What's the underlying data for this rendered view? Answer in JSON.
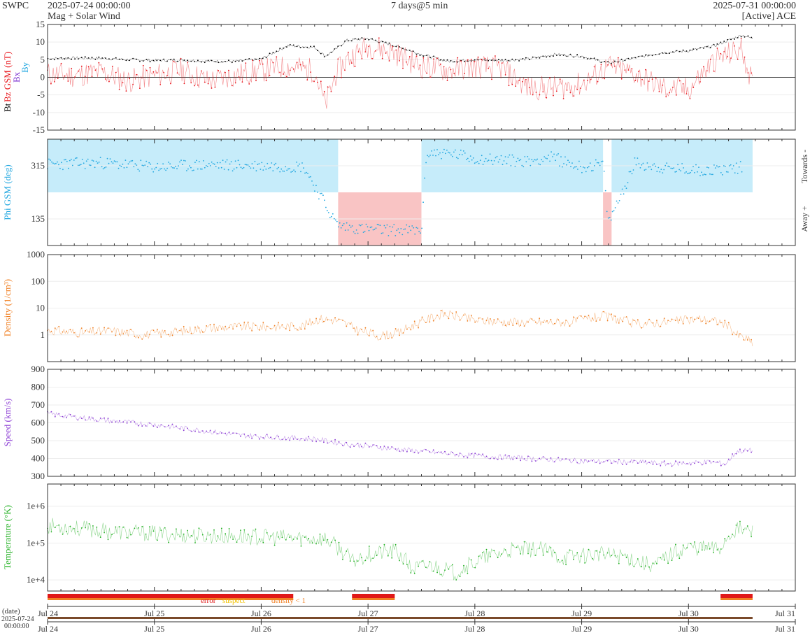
{
  "header": {
    "source": "SWPC",
    "start": "2025-07-24 00:00:00",
    "subtitle": "Mag + Solar Wind",
    "span": "7 days@5 min",
    "end": "2025-07-31 00:00:00",
    "spacecraft": "[Active] ACE"
  },
  "colors": {
    "bt": "#000000",
    "bz": "#e8151b",
    "bx": "#7b2fd0",
    "by": "#22a7e0",
    "phi": "#22a7e0",
    "towards_fill": "#c6ecfa",
    "away_fill": "#f9c4c4",
    "density": "#f07f22",
    "speed": "#8b3cd4",
    "temperature": "#22b022",
    "error": "#e01818",
    "suspect": "#f2c200",
    "density_lt1": "#f07f22"
  },
  "chart_data": [
    {
      "type": "line",
      "id": "mag",
      "ylabel_parts": [
        "Bt",
        "Bz GSM (nT)"
      ],
      "legend": [
        "Bx",
        "By"
      ],
      "ylim": [
        -15,
        15
      ],
      "yticks": [
        15,
        10,
        5,
        0,
        -5,
        -10,
        -15
      ],
      "x_days": [
        0,
        0.25,
        0.5,
        0.75,
        1,
        1.25,
        1.5,
        1.75,
        2,
        2.25,
        2.5,
        2.6,
        2.7,
        2.8,
        3,
        3.25,
        3.5,
        3.75,
        4,
        4.25,
        4.5,
        4.75,
        5,
        5.25,
        5.5,
        5.75,
        6,
        6.25,
        6.5,
        6.6
      ],
      "series": [
        {
          "name": "Bt",
          "values": [
            5.3,
            5.5,
            5.4,
            5.0,
            4.8,
            4.9,
            4.6,
            4.5,
            5.2,
            9.0,
            8.5,
            6.0,
            8.0,
            10.5,
            11.0,
            9.0,
            6.5,
            4.5,
            5.0,
            4.8,
            5.2,
            6.5,
            6.0,
            4.0,
            5.5,
            7.0,
            7.5,
            9.0,
            12.0,
            11.0
          ]
        },
        {
          "name": "Bz",
          "values": [
            1.0,
            0.5,
            1.5,
            -1.0,
            0.5,
            2.0,
            -1.0,
            0.5,
            2.0,
            3.0,
            2.0,
            -8.0,
            1.0,
            5.0,
            9.0,
            7.0,
            3.0,
            2.0,
            3.0,
            2.5,
            -3.0,
            -3.0,
            -2.0,
            3.0,
            1.0,
            -3.0,
            -3.5,
            5.0,
            8.0,
            -2.0
          ]
        }
      ]
    },
    {
      "type": "scatter",
      "id": "phi",
      "ylabel": "Phi GSM (deg)",
      "yticks": [
        315,
        135
      ],
      "ylim": [
        45,
        405
      ],
      "right_labels": [
        "Towards -",
        "Away +"
      ],
      "x_days": [
        0,
        0.5,
        1,
        1.5,
        2,
        2.4,
        2.7,
        2.75,
        3,
        3.5,
        3.55,
        3.8,
        4,
        4.5,
        4.7,
        5,
        5.2,
        5.25,
        5.5,
        5.8,
        6.2,
        6.5
      ],
      "values": [
        320,
        325,
        310,
        318,
        315,
        312,
        120,
        110,
        100,
        95,
        360,
        355,
        340,
        330,
        345,
        310,
        320,
        120,
        325,
        305,
        300,
        310
      ],
      "sectors": [
        {
          "sector": "towards",
          "start": 0.0,
          "end": 2.72
        },
        {
          "sector": "away",
          "start": 2.72,
          "end": 3.5
        },
        {
          "sector": "towards",
          "start": 3.5,
          "end": 5.2
        },
        {
          "sector": "away",
          "start": 5.2,
          "end": 5.28
        },
        {
          "sector": "towards",
          "start": 5.28,
          "end": 6.6
        }
      ]
    },
    {
      "type": "line",
      "id": "density",
      "ylabel": "Density (1/cm³)",
      "yscale": "log",
      "ylim": [
        0.1,
        1000
      ],
      "ytick_labels": [
        "1000",
        "100",
        "10",
        "1"
      ],
      "x_days": [
        0,
        0.3,
        0.6,
        0.9,
        1.2,
        1.5,
        1.8,
        2.1,
        2.4,
        2.55,
        2.7,
        2.9,
        3.1,
        3.3,
        3.5,
        3.7,
        4.0,
        4.3,
        4.6,
        4.9,
        5.2,
        5.5,
        5.8,
        6.1,
        6.3,
        6.45,
        6.6
      ],
      "values": [
        1.5,
        1.2,
        1.4,
        1.0,
        1.3,
        1.8,
        2.0,
        2.0,
        2.2,
        4.0,
        3.5,
        1.5,
        0.9,
        1.2,
        3.0,
        6.0,
        3.5,
        3.0,
        3.0,
        3.0,
        5.0,
        2.5,
        3.0,
        4.0,
        3.0,
        1.0,
        0.5
      ]
    },
    {
      "type": "line",
      "id": "speed",
      "ylabel": "Speed (km/s)",
      "ylim": [
        300,
        900
      ],
      "yticks": [
        900,
        800,
        700,
        600,
        500,
        400,
        300
      ],
      "x_days": [
        0,
        0.3,
        0.6,
        1.0,
        1.4,
        1.8,
        2.1,
        2.5,
        2.8,
        3.0,
        3.3,
        3.5,
        4.0,
        4.5,
        5.0,
        5.5,
        5.8,
        6.0,
        6.2,
        6.35,
        6.45,
        6.6
      ],
      "values": [
        650,
        630,
        610,
        590,
        560,
        530,
        520,
        510,
        480,
        470,
        450,
        440,
        415,
        400,
        385,
        380,
        370,
        375,
        380,
        370,
        440,
        445
      ]
    },
    {
      "type": "line",
      "id": "temperature",
      "ylabel": "Temperature (°K)",
      "yscale": "log",
      "ylim": [
        5000,
        4000000
      ],
      "ytick_labels": [
        "1e+6",
        "1e+5",
        "1e+4"
      ],
      "x_days": [
        0,
        0.3,
        0.6,
        1.0,
        1.4,
        1.8,
        2.2,
        2.6,
        2.7,
        2.85,
        3.0,
        3.25,
        3.4,
        3.6,
        3.8,
        4.0,
        4.3,
        4.6,
        4.8,
        5.1,
        5.4,
        5.55,
        5.7,
        6.0,
        6.3,
        6.45,
        6.6
      ],
      "values": [
        300000,
        250000,
        200000,
        180000,
        160000,
        150000,
        140000,
        130000,
        80000,
        30000,
        50000,
        60000,
        20000,
        25000,
        15000,
        30000,
        60000,
        70000,
        40000,
        50000,
        45000,
        30000,
        25000,
        80000,
        70000,
        250000,
        200000
      ]
    },
    {
      "type": "table",
      "id": "flags",
      "legend": [
        "error",
        "suspect",
        "density < 1"
      ],
      "error_spans": [
        [
          0.0,
          2.3
        ],
        [
          2.85,
          3.25
        ],
        [
          6.3,
          6.6
        ]
      ]
    }
  ],
  "time_axis": {
    "labels": [
      "Jul 24",
      "Jul 25",
      "Jul 26",
      "Jul 27",
      "Jul 28",
      "Jul 29",
      "Jul 30",
      "Jul 31"
    ],
    "date_caption": "(date)",
    "range_caption_lines": [
      "2025-07-24",
      "00:00:00"
    ]
  }
}
